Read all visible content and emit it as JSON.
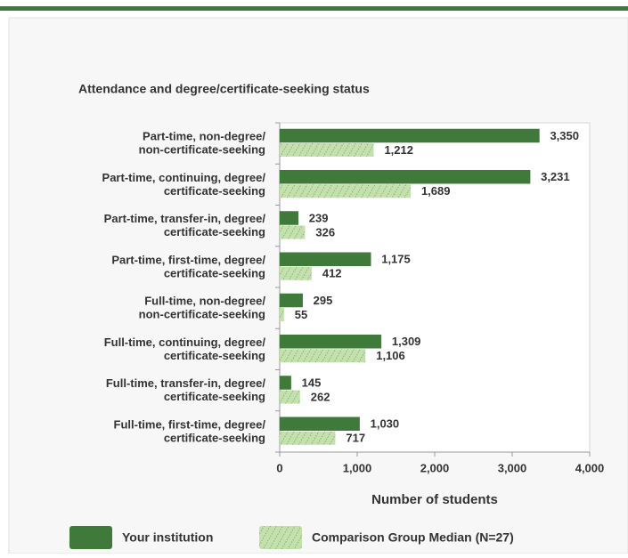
{
  "chart_data": {
    "type": "bar",
    "orientation": "horizontal",
    "title": "Attendance and degree/certificate-seeking status",
    "categories": [
      "Part-time, non-degree/\nnon-certificate-seeking",
      "Part-time, continuing, degree/\ncertificate-seeking",
      "Part-time, transfer-in, degree/\ncertificate-seeking",
      "Part-time, first-time, degree/\ncertificate-seeking",
      "Full-time, non-degree/\nnon-certificate-seeking",
      "Full-time, continuing, degree/\ncertificate-seeking",
      "Full-time, transfer-in, degree/\ncertificate-seeking",
      "Full-time, first-time, degree/\ncertificate-seeking"
    ],
    "series": [
      {
        "name": "Your institution",
        "color": "#3f7a3a",
        "values": [
          3350,
          3231,
          239,
          1175,
          295,
          1309,
          145,
          1030
        ],
        "value_labels": [
          "3,350",
          "3,231",
          "239",
          "1,175",
          "295",
          "1,309",
          "145",
          "1,030"
        ]
      },
      {
        "name": "Comparison Group Median (N=27)",
        "color": "#c3e0ad",
        "values": [
          1212,
          1689,
          326,
          412,
          55,
          1106,
          262,
          717
        ],
        "value_labels": [
          "1,212",
          "1,689",
          "326",
          "412",
          "55",
          "1,106",
          "262",
          "717"
        ]
      }
    ],
    "xlim": [
      0,
      4000
    ],
    "xticks": [
      0,
      {
        "value": 1000,
        "label": "1,000"
      },
      {
        "value": 2000,
        "label": "2,000"
      },
      {
        "value": 3000,
        "label": "3,000"
      },
      {
        "value": 4000,
        "label": "4,000"
      }
    ],
    "xlabel": "Number of students",
    "legend": "bottom"
  }
}
